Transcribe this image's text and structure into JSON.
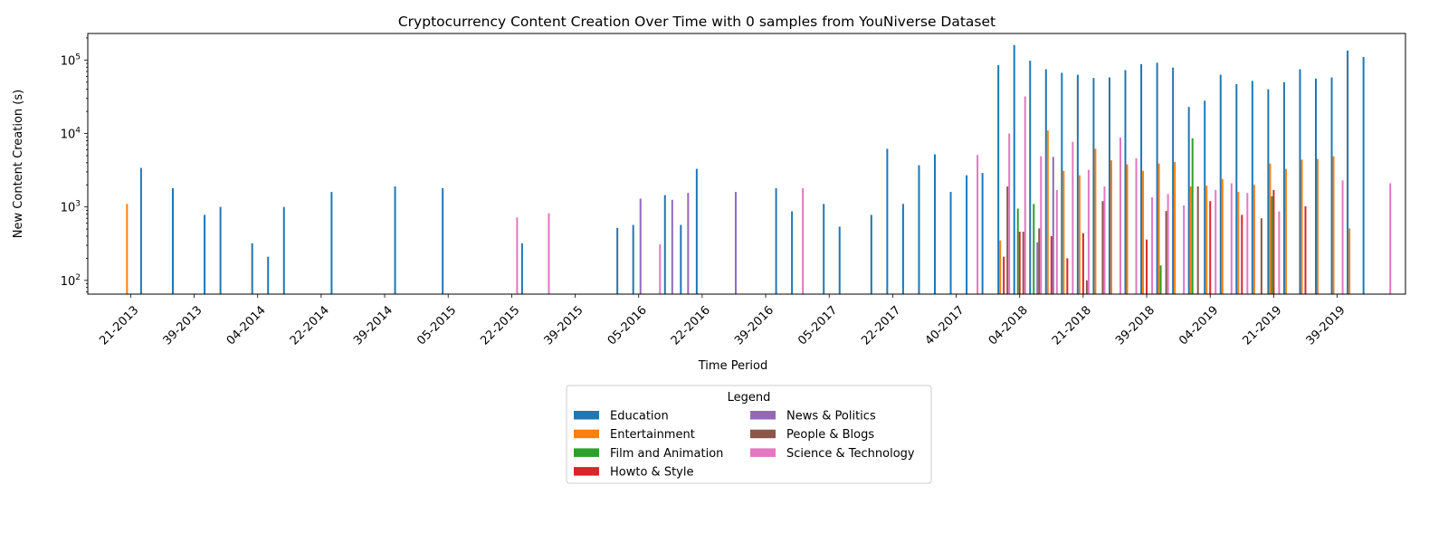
{
  "chart_data": {
    "type": "bar",
    "title": "Cryptocurrency Content Creation Over Time with 0 samples from YouNiverse Dataset",
    "xlabel": "Time Period",
    "ylabel": "New Content Creation (s)",
    "yscale": "log",
    "ylim": [
      65,
      230000
    ],
    "y_ticks": [
      {
        "value": 100,
        "base": "10",
        "exp": "2"
      },
      {
        "value": 1000,
        "base": "10",
        "exp": "3"
      },
      {
        "value": 10000,
        "base": "10",
        "exp": "4"
      },
      {
        "value": 100000,
        "base": "10",
        "exp": "5"
      }
    ],
    "x_tick_labels": [
      "21-2013",
      "39-2013",
      "04-2014",
      "22-2014",
      "39-2014",
      "05-2015",
      "22-2015",
      "39-2015",
      "05-2016",
      "22-2016",
      "39-2016",
      "05-2017",
      "22-2017",
      "40-2017",
      "04-2018",
      "21-2018",
      "39-2018",
      "04-2019",
      "21-2019",
      "39-2019"
    ],
    "x_tick_positions": [
      0,
      4,
      8,
      12,
      16,
      20,
      24,
      28,
      32,
      36,
      40,
      44,
      48,
      52,
      56,
      60,
      64,
      68,
      72,
      76
    ],
    "x_range": [
      -2.7,
      80.3
    ],
    "legend": {
      "title": "Legend",
      "placement": "below",
      "entries": [
        "Education",
        "Entertainment",
        "Film and Animation",
        "Howto & Style",
        "News & Politics",
        "People & Blogs",
        "Science & Technology"
      ]
    },
    "colors": {
      "Education": "#1f77b4",
      "Entertainment": "#ff7f0e",
      "Film and Animation": "#2ca02c",
      "Howto & Style": "#d62728",
      "News & Politics": "#9467bd",
      "People & Blogs": "#8c564b",
      "Science & Technology": "#e377c2"
    },
    "series_order": [
      "Education",
      "Entertainment",
      "Film and Animation",
      "Howto & Style",
      "News & Politics",
      "People & Blogs",
      "Science & Technology"
    ],
    "bars": [
      {
        "x": 0,
        "series": "Entertainment",
        "value": 1100
      },
      {
        "x": 1,
        "series": "Education",
        "value": 3400
      },
      {
        "x": 3,
        "series": "Education",
        "value": 1800
      },
      {
        "x": 5,
        "series": "Education",
        "value": 780
      },
      {
        "x": 6,
        "series": "Education",
        "value": 1000
      },
      {
        "x": 8,
        "series": "Education",
        "value": 320
      },
      {
        "x": 9,
        "series": "Education",
        "value": 210
      },
      {
        "x": 10,
        "series": "Education",
        "value": 1000
      },
      {
        "x": 13,
        "series": "Education",
        "value": 1600
      },
      {
        "x": 17,
        "series": "Education",
        "value": 1900
      },
      {
        "x": 20,
        "series": "Education",
        "value": 1800
      },
      {
        "x": 24,
        "series": "Science & Technology",
        "value": 720
      },
      {
        "x": 25,
        "series": "Education",
        "value": 320
      },
      {
        "x": 26,
        "series": "Science & Technology",
        "value": 820
      },
      {
        "x": 31,
        "series": "Education",
        "value": 520
      },
      {
        "x": 32,
        "series": "Education",
        "value": 570
      },
      {
        "x": 32,
        "series": "News & Politics",
        "value": 1300
      },
      {
        "x": 33,
        "series": "Science & Technology",
        "value": 310
      },
      {
        "x": 34,
        "series": "Education",
        "value": 1450
      },
      {
        "x": 34,
        "series": "News & Politics",
        "value": 1250
      },
      {
        "x": 35,
        "series": "Education",
        "value": 570
      },
      {
        "x": 35,
        "series": "News & Politics",
        "value": 1550
      },
      {
        "x": 36,
        "series": "Education",
        "value": 3300
      },
      {
        "x": 38,
        "series": "News & Politics",
        "value": 1600
      },
      {
        "x": 41,
        "series": "Education",
        "value": 1800
      },
      {
        "x": 42,
        "series": "Education",
        "value": 870
      },
      {
        "x": 42,
        "series": "Science & Technology",
        "value": 1800
      },
      {
        "x": 44,
        "series": "Education",
        "value": 1100
      },
      {
        "x": 45,
        "series": "Education",
        "value": 540
      },
      {
        "x": 47,
        "series": "Education",
        "value": 780
      },
      {
        "x": 48,
        "series": "Education",
        "value": 6200
      },
      {
        "x": 49,
        "series": "Education",
        "value": 1100
      },
      {
        "x": 50,
        "series": "Education",
        "value": 3700
      },
      {
        "x": 51,
        "series": "Education",
        "value": 5200
      },
      {
        "x": 52,
        "series": "Education",
        "value": 1600
      },
      {
        "x": 53,
        "series": "Education",
        "value": 2700
      },
      {
        "x": 53,
        "series": "Science & Technology",
        "value": 5100
      },
      {
        "x": 54,
        "series": "Education",
        "value": 2900
      },
      {
        "x": 55,
        "series": "Education",
        "value": 85000
      },
      {
        "x": 55,
        "series": "Entertainment",
        "value": 350
      },
      {
        "x": 55,
        "series": "Howto & Style",
        "value": 210
      },
      {
        "x": 55,
        "series": "People & Blogs",
        "value": 1900
      },
      {
        "x": 55,
        "series": "Science & Technology",
        "value": 10000
      },
      {
        "x": 56,
        "series": "Education",
        "value": 160000
      },
      {
        "x": 56,
        "series": "Film and Animation",
        "value": 950
      },
      {
        "x": 56,
        "series": "Howto & Style",
        "value": 460
      },
      {
        "x": 56,
        "series": "People & Blogs",
        "value": 460
      },
      {
        "x": 56,
        "series": "Science & Technology",
        "value": 32000
      },
      {
        "x": 57,
        "series": "Education",
        "value": 98000
      },
      {
        "x": 57,
        "series": "Film and Animation",
        "value": 1100
      },
      {
        "x": 57,
        "series": "News & Politics",
        "value": 330
      },
      {
        "x": 57,
        "series": "People & Blogs",
        "value": 510
      },
      {
        "x": 57,
        "series": "Science & Technology",
        "value": 4900
      },
      {
        "x": 58,
        "series": "Education",
        "value": 75000
      },
      {
        "x": 58,
        "series": "Entertainment",
        "value": 11000
      },
      {
        "x": 58,
        "series": "Howto & Style",
        "value": 400
      },
      {
        "x": 58,
        "series": "News & Politics",
        "value": 4800
      },
      {
        "x": 58,
        "series": "Science & Technology",
        "value": 1700
      },
      {
        "x": 59,
        "series": "Education",
        "value": 67000
      },
      {
        "x": 59,
        "series": "Entertainment",
        "value": 3100
      },
      {
        "x": 59,
        "series": "Howto & Style",
        "value": 200
      },
      {
        "x": 59,
        "series": "Science & Technology",
        "value": 7700
      },
      {
        "x": 60,
        "series": "Education",
        "value": 63000
      },
      {
        "x": 60,
        "series": "Entertainment",
        "value": 2700
      },
      {
        "x": 60,
        "series": "Howto & Style",
        "value": 440
      },
      {
        "x": 60,
        "series": "People & Blogs",
        "value": 100
      },
      {
        "x": 60,
        "series": "Science & Technology",
        "value": 3200
      },
      {
        "x": 61,
        "series": "Education",
        "value": 57000
      },
      {
        "x": 61,
        "series": "Entertainment",
        "value": 6200
      },
      {
        "x": 61,
        "series": "People & Blogs",
        "value": 1200
      },
      {
        "x": 61,
        "series": "Science & Technology",
        "value": 1900
      },
      {
        "x": 62,
        "series": "Education",
        "value": 58000
      },
      {
        "x": 62,
        "series": "Entertainment",
        "value": 4300
      },
      {
        "x": 62,
        "series": "Science & Technology",
        "value": 8800
      },
      {
        "x": 63,
        "series": "Education",
        "value": 73000
      },
      {
        "x": 63,
        "series": "Entertainment",
        "value": 3800
      },
      {
        "x": 63,
        "series": "Science & Technology",
        "value": 4600
      },
      {
        "x": 64,
        "series": "Education",
        "value": 88000
      },
      {
        "x": 64,
        "series": "Entertainment",
        "value": 3100
      },
      {
        "x": 64,
        "series": "Howto & Style",
        "value": 360
      },
      {
        "x": 64,
        "series": "Science & Technology",
        "value": 1350
      },
      {
        "x": 65,
        "series": "Education",
        "value": 92000
      },
      {
        "x": 65,
        "series": "Entertainment",
        "value": 3900
      },
      {
        "x": 65,
        "series": "Film and Animation",
        "value": 160
      },
      {
        "x": 65,
        "series": "People & Blogs",
        "value": 880
      },
      {
        "x": 65,
        "series": "Science & Technology",
        "value": 1500
      },
      {
        "x": 66,
        "series": "Education",
        "value": 79000
      },
      {
        "x": 66,
        "series": "Entertainment",
        "value": 4100
      },
      {
        "x": 66,
        "series": "Science & Technology",
        "value": 1050
      },
      {
        "x": 67,
        "series": "Education",
        "value": 23000
      },
      {
        "x": 67,
        "series": "Entertainment",
        "value": 1900
      },
      {
        "x": 67,
        "series": "Film and Animation",
        "value": 8600
      },
      {
        "x": 67,
        "series": "People & Blogs",
        "value": 1900
      },
      {
        "x": 68,
        "series": "Education",
        "value": 28000
      },
      {
        "x": 68,
        "series": "Entertainment",
        "value": 1950
      },
      {
        "x": 68,
        "series": "Howto & Style",
        "value": 1200
      },
      {
        "x": 68,
        "series": "Science & Technology",
        "value": 1700
      },
      {
        "x": 69,
        "series": "Education",
        "value": 63000
      },
      {
        "x": 69,
        "series": "Entertainment",
        "value": 2400
      },
      {
        "x": 69,
        "series": "Science & Technology",
        "value": 2100
      },
      {
        "x": 70,
        "series": "Education",
        "value": 47000
      },
      {
        "x": 70,
        "series": "Entertainment",
        "value": 1600
      },
      {
        "x": 70,
        "series": "Howto & Style",
        "value": 780
      },
      {
        "x": 70,
        "series": "Science & Technology",
        "value": 1550
      },
      {
        "x": 71,
        "series": "Education",
        "value": 52000
      },
      {
        "x": 71,
        "series": "Entertainment",
        "value": 2000
      },
      {
        "x": 71,
        "series": "People & Blogs",
        "value": 700
      },
      {
        "x": 72,
        "series": "Education",
        "value": 40000
      },
      {
        "x": 72,
        "series": "Entertainment",
        "value": 3900
      },
      {
        "x": 72,
        "series": "Film and Animation",
        "value": 1400
      },
      {
        "x": 72,
        "series": "Howto & Style",
        "value": 1700
      },
      {
        "x": 72,
        "series": "Science & Technology",
        "value": 870
      },
      {
        "x": 73,
        "series": "Education",
        "value": 50000
      },
      {
        "x": 73,
        "series": "Entertainment",
        "value": 3300
      },
      {
        "x": 74,
        "series": "Education",
        "value": 75000
      },
      {
        "x": 74,
        "series": "Entertainment",
        "value": 4400
      },
      {
        "x": 74,
        "series": "Howto & Style",
        "value": 1020
      },
      {
        "x": 75,
        "series": "Education",
        "value": 56000
      },
      {
        "x": 75,
        "series": "Entertainment",
        "value": 4500
      },
      {
        "x": 76,
        "series": "Education",
        "value": 58000
      },
      {
        "x": 76,
        "series": "Entertainment",
        "value": 4900
      },
      {
        "x": 76,
        "series": "Science & Technology",
        "value": 2300
      },
      {
        "x": 77,
        "series": "Education",
        "value": 135000
      },
      {
        "x": 77,
        "series": "Entertainment",
        "value": 510
      },
      {
        "x": 78,
        "series": "Education",
        "value": 110000
      },
      {
        "x": 79,
        "series": "Science & Technology",
        "value": 2100
      }
    ]
  }
}
